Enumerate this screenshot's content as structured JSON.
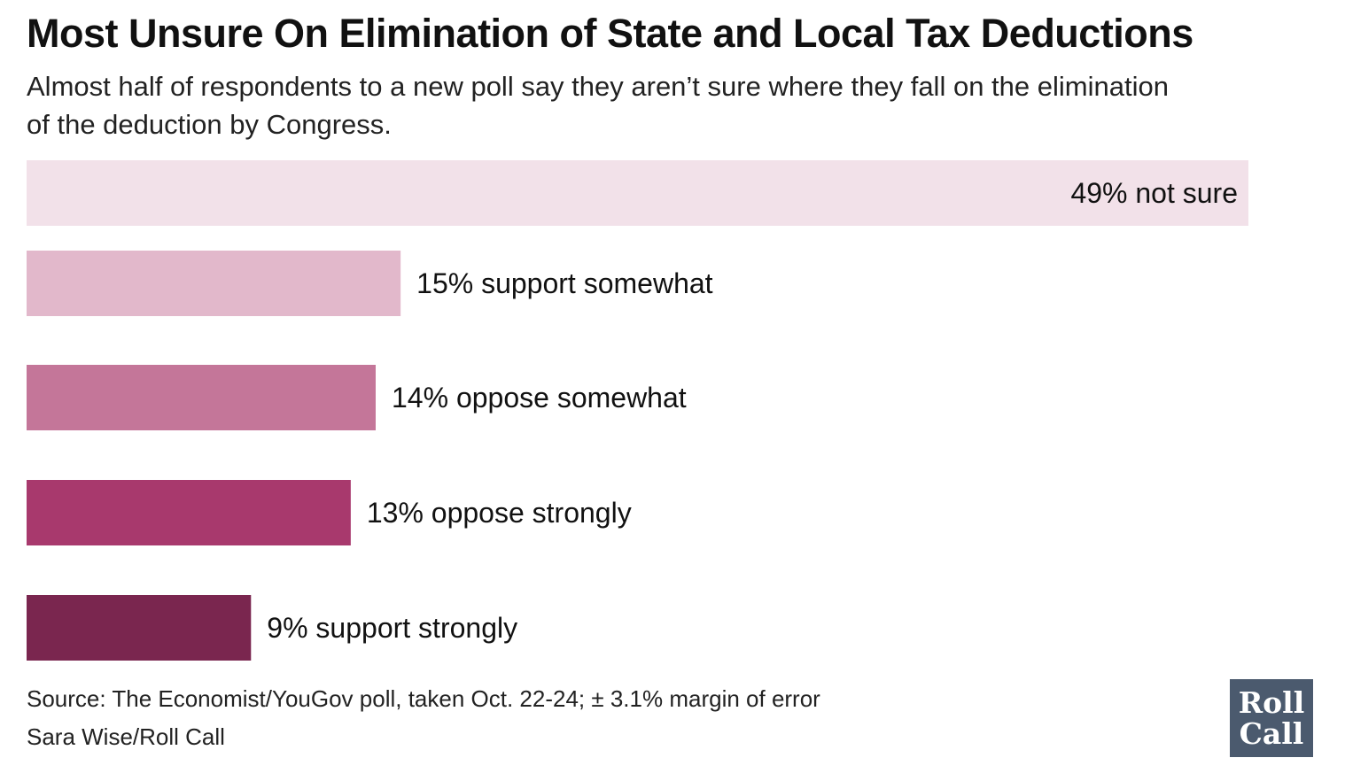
{
  "chart_data": {
    "type": "bar",
    "orientation": "horizontal",
    "title": "Most Unsure On Elimination of State and Local Tax Deductions",
    "subtitle": "Almost half of respondents to a new poll say they aren’t sure where they fall on the elimination of the deduction by Congress.",
    "categories": [
      "not sure",
      "support somewhat",
      "oppose somewhat",
      "oppose strongly",
      "support strongly"
    ],
    "values": [
      49,
      15,
      14,
      13,
      9
    ],
    "labels": [
      "49% not sure",
      "15% support somewhat",
      "14% oppose somewhat",
      "13% oppose strongly",
      "9% support strongly"
    ],
    "colors": [
      "#f2e1e9",
      "#e2b8cb",
      "#c47699",
      "#a8396d",
      "#7a264f"
    ],
    "unit": "%",
    "grid": false,
    "legend": "none"
  },
  "footer": {
    "source": "Source: The Economist/YouGov poll, taken Oct. 22-24; ± 3.1% margin of error",
    "credit": "Sara Wise/Roll Call"
  },
  "logo": {
    "line1": "Roll",
    "line2": "Call"
  }
}
